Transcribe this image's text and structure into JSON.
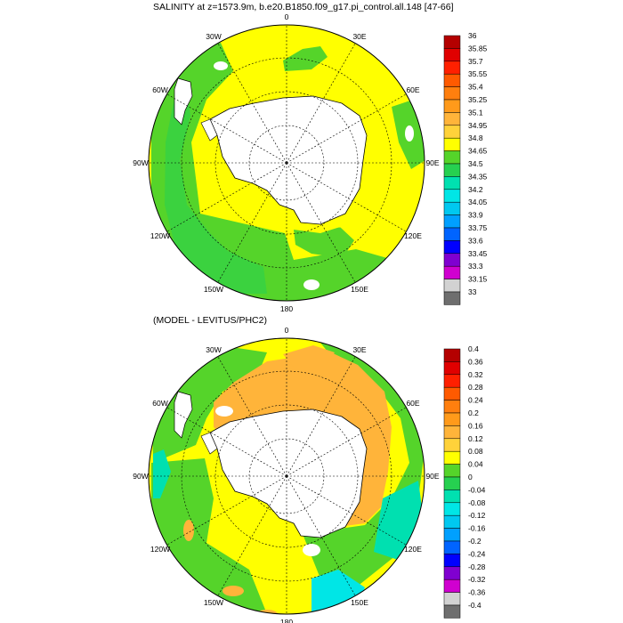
{
  "panels": [
    {
      "title": "SALINITY at z=1573.9m, b.e20.B1850.f09_g17.pi_control.all.148 [47-66]",
      "longitude_labels": [
        "0",
        "30E",
        "60E",
        "90E",
        "120E",
        "150E",
        "180",
        "150W",
        "120W",
        "90W",
        "60W",
        "30W"
      ],
      "colorbar": {
        "labels": [
          "36",
          "35.85",
          "35.7",
          "35.55",
          "35.4",
          "35.25",
          "35.1",
          "34.95",
          "34.8",
          "34.65",
          "34.5",
          "34.35",
          "34.2",
          "34.05",
          "33.9",
          "33.75",
          "33.6",
          "33.45",
          "33.3",
          "33.15",
          "33"
        ],
        "colors": [
          "#b40000",
          "#e00000",
          "#ff2000",
          "#ff5a00",
          "#ff7f0e",
          "#ff9a1a",
          "#ffb43a",
          "#ffd23a",
          "#ffff00",
          "#55d42a",
          "#26d050",
          "#00e0b0",
          "#00e6e6",
          "#00c8f0",
          "#00a0ff",
          "#0064ff",
          "#0000ff",
          "#8000d0",
          "#d000d0",
          "#d2d2d2",
          "#6e6e6e"
        ]
      }
    },
    {
      "title": "(MODEL - LEVITUS/PHC2)",
      "longitude_labels": [
        "0",
        "30E",
        "60E",
        "90E",
        "120E",
        "150E",
        "180",
        "150W",
        "120W",
        "90W",
        "60W",
        "30W"
      ],
      "colorbar": {
        "labels": [
          "0.4",
          "0.36",
          "0.32",
          "0.28",
          "0.24",
          "0.2",
          "0.16",
          "0.12",
          "0.08",
          "0.04",
          "0",
          "-0.04",
          "-0.08",
          "-0.12",
          "-0.16",
          "-0.2",
          "-0.24",
          "-0.28",
          "-0.32",
          "-0.36",
          "-0.4"
        ],
        "colors": [
          "#b40000",
          "#e00000",
          "#ff2000",
          "#ff5a00",
          "#ff7f0e",
          "#ff9a1a",
          "#ffb43a",
          "#ffd23a",
          "#ffff00",
          "#55d42a",
          "#26d050",
          "#00e0b0",
          "#00e6e6",
          "#00c8f0",
          "#00a0ff",
          "#0064ff",
          "#0000ff",
          "#8000d0",
          "#d000d0",
          "#d2d2d2",
          "#6e6e6e"
        ]
      }
    }
  ]
}
